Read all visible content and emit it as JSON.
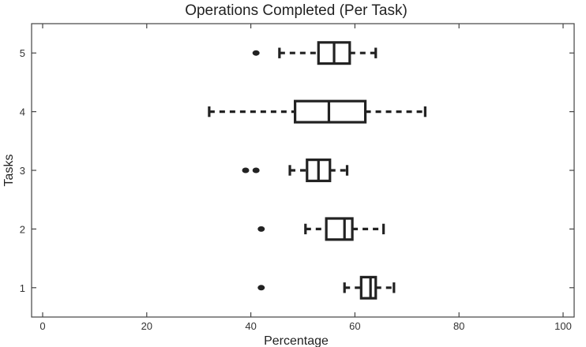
{
  "chart_data": {
    "type": "boxplot",
    "orientation": "horizontal",
    "title": "Operations Completed (Per Task)",
    "xlabel": "Percentage",
    "ylabel": "Tasks",
    "xlim": [
      0,
      100
    ],
    "ylim": [
      0.5,
      5.5
    ],
    "xticks": [
      0,
      20,
      40,
      60,
      80,
      100
    ],
    "yticks": [
      1,
      2,
      3,
      4,
      5
    ],
    "grid": false,
    "legend": "none",
    "boxes": [
      {
        "task": 1,
        "whisker_low": 58,
        "q1": 61.2,
        "median": 63,
        "q3": 64,
        "whisker_high": 67.5,
        "outliers": [
          42
        ]
      },
      {
        "task": 2,
        "whisker_low": 50.5,
        "q1": 54.5,
        "median": 58,
        "q3": 59.5,
        "whisker_high": 65.5,
        "outliers": [
          42
        ]
      },
      {
        "task": 3,
        "whisker_low": 47.5,
        "q1": 50.8,
        "median": 53,
        "q3": 55.2,
        "whisker_high": 58.5,
        "outliers": [
          39,
          41
        ]
      },
      {
        "task": 4,
        "whisker_low": 32,
        "q1": 48.5,
        "median": 55,
        "q3": 62,
        "whisker_high": 73.5,
        "outliers": []
      },
      {
        "task": 5,
        "whisker_low": 45.5,
        "q1": 53,
        "median": 56,
        "q3": 59,
        "whisker_high": 64,
        "outliers": [
          41
        ]
      }
    ]
  }
}
